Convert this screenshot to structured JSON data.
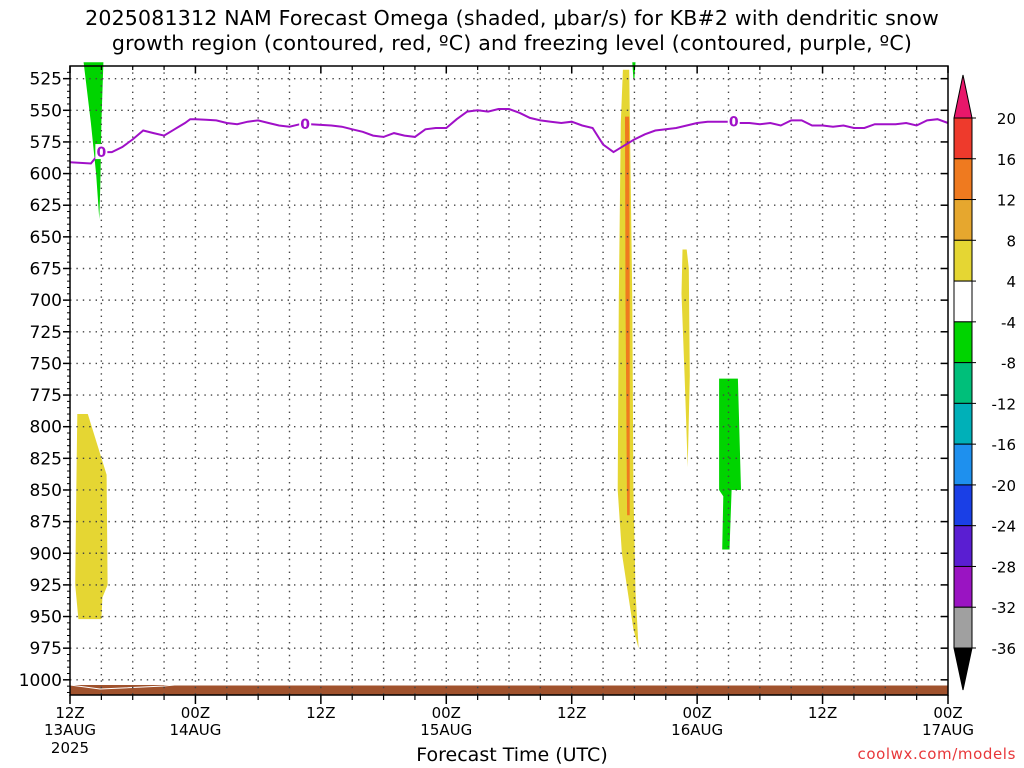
{
  "title": {
    "line1": "2025081312 NAM Forecast Omega (shaded, μbar/s) for KB#2 with dendritic snow",
    "line2": "growth region (contoured, red, ºC) and freezing level (contoured, purple, ºC)"
  },
  "credit": "coolwx.com/models",
  "chart_data": {
    "type": "heatmap",
    "xlabel": "Forecast Time (UTC)",
    "x_unit": "hours since 2025081312",
    "x_range": [
      0,
      84
    ],
    "x_ticks": [
      {
        "h": 0,
        "label": "12Z",
        "sub": "13AUG",
        "sub2": "2025"
      },
      {
        "h": 12,
        "label": "00Z",
        "sub": "14AUG"
      },
      {
        "h": 24,
        "label": "12Z",
        "sub": ""
      },
      {
        "h": 36,
        "label": "00Z",
        "sub": "15AUG"
      },
      {
        "h": 48,
        "label": "12Z",
        "sub": ""
      },
      {
        "h": 60,
        "label": "00Z",
        "sub": "16AUG"
      },
      {
        "h": 72,
        "label": "12Z",
        "sub": ""
      },
      {
        "h": 84,
        "label": "00Z",
        "sub": "17AUG"
      }
    ],
    "y_unit": "hPa",
    "y_range": [
      1012,
      515
    ],
    "y_ticks": [
      525,
      550,
      575,
      600,
      625,
      650,
      675,
      700,
      725,
      750,
      775,
      800,
      825,
      850,
      875,
      900,
      925,
      950,
      975,
      1000
    ],
    "grid": true,
    "colorbar": {
      "labels": [
        20,
        16,
        12,
        8,
        4,
        -4,
        -8,
        -12,
        -16,
        -20,
        -24,
        -28,
        -32,
        -36
      ],
      "colors": [
        "#e8176a",
        "#ee3a2c",
        "#ef7a1f",
        "#e6a72e",
        "#e5d633",
        "#ffffff",
        "#00d400",
        "#00bf7a",
        "#00b0b8",
        "#1e90ee",
        "#1a3fe6",
        "#5a1ed2",
        "#9a14c2",
        "#a0a0a0"
      ]
    },
    "shaded_regions": [
      {
        "color": "#00d400",
        "points": [
          [
            1.3,
            512
          ],
          [
            3.2,
            512
          ],
          [
            3.0,
            560
          ],
          [
            2.9,
            610
          ],
          [
            2.8,
            636
          ],
          [
            2.5,
            600
          ],
          [
            2.0,
            560
          ]
        ]
      },
      {
        "color": "#00d400",
        "points": [
          [
            53.8,
            512
          ],
          [
            54.1,
            512
          ],
          [
            54.0,
            525
          ],
          [
            53.9,
            525
          ]
        ]
      },
      {
        "color": "#e5d633",
        "points": [
          [
            0.7,
            790
          ],
          [
            1.7,
            790
          ],
          [
            3.5,
            838
          ],
          [
            3.6,
            925
          ],
          [
            3.1,
            935
          ],
          [
            3.0,
            952
          ],
          [
            0.8,
            952
          ],
          [
            0.5,
            925
          ],
          [
            0.6,
            850
          ]
        ]
      },
      {
        "color": "#e5d633",
        "points": [
          [
            52.9,
            518
          ],
          [
            53.5,
            518
          ],
          [
            53.8,
            700
          ],
          [
            53.9,
            850
          ],
          [
            54.1,
            930
          ],
          [
            54.4,
            975
          ],
          [
            53.9,
            960
          ],
          [
            52.8,
            900
          ],
          [
            52.4,
            850
          ],
          [
            52.5,
            700
          ],
          [
            52.7,
            560
          ]
        ]
      },
      {
        "color": "#ef7a1f",
        "points": [
          [
            53.1,
            555
          ],
          [
            53.5,
            555
          ],
          [
            53.55,
            700
          ],
          [
            53.55,
            870
          ],
          [
            53.3,
            870
          ],
          [
            53.15,
            700
          ]
        ]
      },
      {
        "color": "#e5d633",
        "points": [
          [
            58.6,
            660
          ],
          [
            59.0,
            660
          ],
          [
            59.2,
            675
          ],
          [
            59.3,
            760
          ],
          [
            59.1,
            832
          ],
          [
            58.8,
            760
          ],
          [
            58.5,
            695
          ]
        ]
      },
      {
        "color": "#00d400",
        "points": [
          [
            62.1,
            762
          ],
          [
            63.9,
            762
          ],
          [
            64.2,
            850
          ],
          [
            63.3,
            850
          ],
          [
            63.1,
            897
          ],
          [
            62.4,
            897
          ],
          [
            62.5,
            855
          ],
          [
            62.1,
            850
          ]
        ]
      }
    ],
    "freezing_level": {
      "name": "0",
      "color": "#a010c8",
      "x": [
        0,
        2,
        2.5,
        3,
        4,
        5,
        6,
        7,
        8,
        9,
        10,
        11,
        11.5,
        12,
        13,
        14,
        15,
        16,
        17,
        18,
        19,
        20,
        21,
        22,
        23,
        24,
        25,
        26,
        27,
        28,
        29,
        30,
        31,
        32,
        33,
        34,
        35,
        36,
        37,
        38,
        39,
        40,
        41,
        42,
        43,
        44,
        45,
        46,
        47,
        48,
        49,
        50,
        51,
        52,
        53,
        54,
        55,
        56,
        57,
        58,
        59,
        60,
        61,
        62,
        63,
        64,
        65,
        66,
        67,
        68,
        69,
        70,
        71,
        72,
        73,
        74,
        75,
        76,
        77,
        78,
        79,
        80,
        81,
        82,
        83,
        84
      ],
      "y": [
        591,
        592,
        587,
        583,
        583,
        579,
        573,
        566,
        568,
        570,
        565,
        560,
        557,
        557,
        557.5,
        558,
        560,
        561,
        559,
        558,
        560,
        562,
        563,
        561,
        561,
        561.5,
        562,
        563,
        565,
        567,
        570,
        571,
        568,
        570,
        571,
        565,
        564,
        564,
        557,
        551,
        550,
        551,
        549,
        549,
        552,
        556,
        558,
        559,
        560,
        559,
        562,
        564,
        577,
        583,
        578,
        573,
        569,
        566,
        565,
        564,
        562,
        560,
        559,
        559,
        559,
        560,
        560,
        561,
        560,
        562,
        558,
        558,
        562,
        562,
        563,
        562,
        564,
        564,
        561,
        561,
        561,
        560,
        562,
        558,
        557,
        560
      ]
    },
    "surface": {
      "color": "#a0522d",
      "note": "terrain below ground"
    }
  }
}
